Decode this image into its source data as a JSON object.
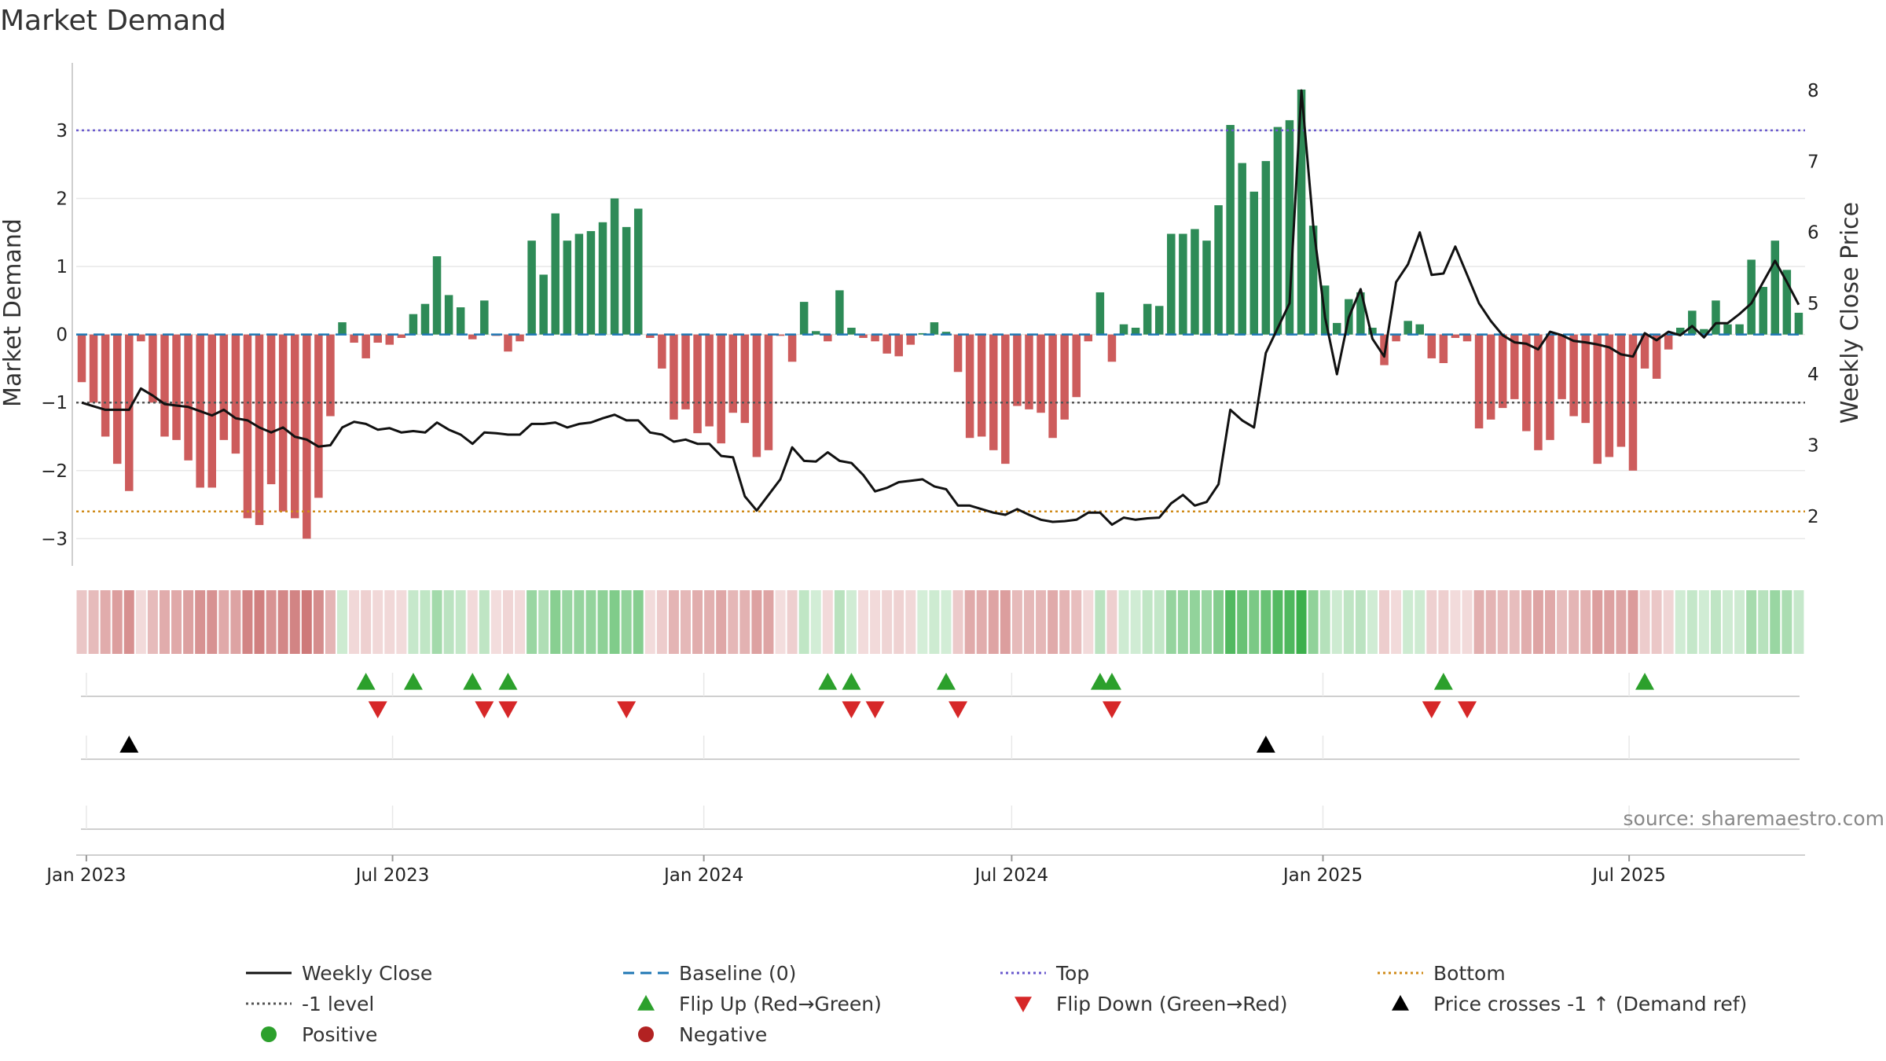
{
  "colors": {
    "positive": "#2e8b57",
    "negative": "#cd5c5c",
    "price": "#111111",
    "baseline": "#1f77b4",
    "top": "#6a5acd",
    "bottom": "#d08b1a",
    "minus_one": "#555555",
    "flip_up": "#2ca02c",
    "flip_down": "#d62728",
    "cross": "#000000",
    "heat_green": "#3cb04c",
    "heat_red": "#c76565"
  },
  "chart_data": {
    "type": "bar",
    "title": "Market Demand",
    "ylabel": "Market Demand",
    "y2label": "Weekly Close Price",
    "ylim": [
      -3.4,
      3.9
    ],
    "y2lim": [
      1.3,
      8.3
    ],
    "yticks": [
      -3,
      -2,
      -1,
      0,
      1,
      2,
      3
    ],
    "yticklabels": [
      "−3",
      "−2",
      "−1",
      "0",
      "1",
      "2",
      "3"
    ],
    "y2ticks": [
      2,
      3,
      4,
      5,
      6,
      7,
      8
    ],
    "y2ticklabels": [
      "2",
      "3",
      "4",
      "5",
      "6",
      "7",
      "8"
    ],
    "x_start": "2022-12-26",
    "x_end": "2025-10-13",
    "xticks": [
      {
        "date": "2023-01-01",
        "label": "Jan 2023"
      },
      {
        "date": "2023-07-01",
        "label": "Jul 2023"
      },
      {
        "date": "2024-01-01",
        "label": "Jan 2024"
      },
      {
        "date": "2024-07-01",
        "label": "Jul 2024"
      },
      {
        "date": "2025-01-01",
        "label": "Jan 2025"
      },
      {
        "date": "2025-07-01",
        "label": "Jul 2025"
      }
    ],
    "first_week": "2022-12-26",
    "demand": [
      -0.7,
      -1.0,
      -1.5,
      -1.9,
      -2.3,
      -0.1,
      -1.0,
      -1.5,
      -1.55,
      -1.85,
      -2.25,
      -2.25,
      -1.55,
      -1.75,
      -2.7,
      -2.8,
      -2.2,
      -2.6,
      -2.7,
      -3.0,
      -2.4,
      -1.2,
      0.18,
      -0.12,
      -0.35,
      -0.12,
      -0.15,
      -0.05,
      0.3,
      0.45,
      1.15,
      0.58,
      0.4,
      -0.07,
      0.5,
      -0.02,
      -0.25,
      -0.1,
      1.38,
      0.88,
      1.78,
      1.38,
      1.48,
      1.52,
      1.65,
      2.0,
      1.58,
      1.85,
      -0.05,
      -0.5,
      -1.25,
      -1.1,
      -1.45,
      -1.35,
      -1.6,
      -1.15,
      -1.3,
      -1.8,
      -1.7,
      -0.02,
      -0.4,
      0.48,
      0.05,
      -0.1,
      0.65,
      0.1,
      -0.05,
      -0.1,
      -0.28,
      -0.32,
      -0.15,
      0.02,
      0.18,
      0.04,
      -0.55,
      -1.52,
      -1.5,
      -1.7,
      -1.9,
      -1.05,
      -1.1,
      -1.15,
      -1.52,
      -1.25,
      -0.92,
      -0.1,
      0.62,
      -0.4,
      0.15,
      0.1,
      0.45,
      0.42,
      1.48,
      1.48,
      1.55,
      1.38,
      1.9,
      3.08,
      2.52,
      2.1,
      2.55,
      3.05,
      3.15,
      3.6,
      1.6,
      0.72,
      0.17,
      0.52,
      0.62,
      0.1,
      -0.45,
      -0.1,
      0.2,
      0.15,
      -0.35,
      -0.42,
      -0.05,
      -0.1,
      -1.38,
      -1.25,
      -1.08,
      -0.95,
      -1.42,
      -1.7,
      -1.55,
      -0.95,
      -1.2,
      -1.3,
      -1.9,
      -1.8,
      -1.65,
      -2.0,
      -0.5,
      -0.65,
      -0.22,
      0.1,
      0.35,
      0.08,
      0.5,
      0.15,
      0.15,
      1.1,
      0.7,
      1.38,
      0.95,
      0.32
    ],
    "price": [
      3.6,
      3.55,
      3.5,
      3.5,
      3.5,
      3.8,
      3.7,
      3.58,
      3.56,
      3.54,
      3.48,
      3.42,
      3.5,
      3.38,
      3.35,
      3.25,
      3.18,
      3.25,
      3.12,
      3.08,
      2.98,
      3.0,
      3.25,
      3.33,
      3.3,
      3.22,
      3.24,
      3.18,
      3.2,
      3.18,
      3.32,
      3.22,
      3.15,
      3.02,
      3.18,
      3.17,
      3.15,
      3.15,
      3.3,
      3.3,
      3.32,
      3.25,
      3.3,
      3.32,
      3.38,
      3.43,
      3.35,
      3.35,
      3.18,
      3.15,
      3.05,
      3.08,
      3.02,
      3.02,
      2.85,
      2.83,
      2.28,
      2.08,
      2.3,
      2.52,
      2.97,
      2.78,
      2.77,
      2.9,
      2.78,
      2.75,
      2.58,
      2.35,
      2.4,
      2.48,
      2.5,
      2.52,
      2.42,
      2.38,
      2.15,
      2.15,
      2.1,
      2.05,
      2.02,
      2.1,
      2.02,
      1.95,
      1.92,
      1.93,
      1.95,
      2.05,
      2.05,
      1.88,
      1.98,
      1.95,
      1.97,
      1.98,
      2.18,
      2.3,
      2.15,
      2.2,
      2.45,
      3.5,
      3.35,
      3.25,
      4.3,
      4.65,
      5.0,
      8.0,
      6.1,
      4.8,
      4.0,
      4.8,
      5.2,
      4.5,
      4.25,
      5.3,
      5.55,
      6.0,
      5.4,
      5.42,
      5.8,
      5.4,
      5.0,
      4.75,
      4.55,
      4.45,
      4.43,
      4.35,
      4.6,
      4.55,
      4.47,
      4.45,
      4.42,
      4.38,
      4.28,
      4.25,
      4.58,
      4.48,
      4.6,
      4.55,
      4.68,
      4.52,
      4.72,
      4.72,
      4.85,
      5.0,
      5.3,
      5.6,
      5.3,
      4.98
    ],
    "reference_lines": {
      "top": 3.0,
      "bottom": -2.6,
      "minus_one": -1.0,
      "baseline": 0.0
    },
    "flip_up_dates": [
      "2023-06-12",
      "2023-07-10",
      "2023-08-14",
      "2023-09-04",
      "2024-03-11",
      "2024-03-25",
      "2024-05-20",
      "2024-08-19",
      "2024-08-26",
      "2025-03-10",
      "2025-07-07"
    ],
    "flip_down_dates": [
      "2023-06-19",
      "2023-08-21",
      "2023-09-04",
      "2023-11-13",
      "2024-03-25",
      "2024-04-08",
      "2024-05-27",
      "2024-08-26",
      "2025-03-03",
      "2025-03-24"
    ],
    "cross_dates": [
      "2023-01-23",
      "2024-11-25"
    ],
    "source": "source: sharemaestro.com",
    "legend": [
      {
        "key": "weekly_close",
        "label": "Weekly Close",
        "marker": "line",
        "color": "#111111",
        "dash": ""
      },
      {
        "key": "baseline",
        "label": "Baseline (0)",
        "marker": "line",
        "color": "#1f77b4",
        "dash": "14 8"
      },
      {
        "key": "top",
        "label": "Top",
        "marker": "line",
        "color": "#6a5acd",
        "dash": "3 4"
      },
      {
        "key": "bottom",
        "label": "Bottom",
        "marker": "line",
        "color": "#d08b1a",
        "dash": "3 4"
      },
      {
        "key": "minus_one",
        "label": "-1 level",
        "marker": "line",
        "color": "#555555",
        "dash": "3 4"
      },
      {
        "key": "flip_up",
        "label": "Flip Up (Red→Green)",
        "marker": "tri-up",
        "color": "#2ca02c",
        "dash": ""
      },
      {
        "key": "flip_down",
        "label": "Flip Down (Green→Red)",
        "marker": "tri-down",
        "color": "#d62728",
        "dash": ""
      },
      {
        "key": "cross",
        "label": "Price crosses -1 ↑ (Demand ref)",
        "marker": "tri-up",
        "color": "#000000",
        "dash": ""
      },
      {
        "key": "positive",
        "label": "Positive",
        "marker": "circle",
        "color": "#2ca02c",
        "dash": ""
      },
      {
        "key": "negative",
        "label": "Negative",
        "marker": "circle",
        "color": "#b22222",
        "dash": ""
      }
    ]
  }
}
